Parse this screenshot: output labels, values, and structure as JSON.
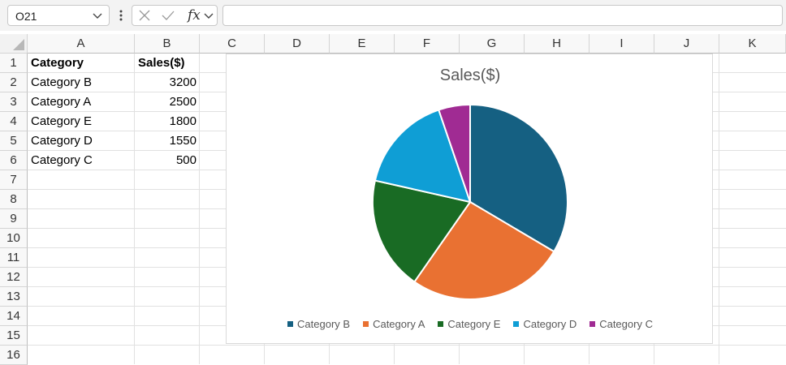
{
  "formula_bar": {
    "name_box": "O21",
    "fx_label": "fx",
    "formula": "",
    "icons": [
      "chevron-down-icon",
      "more-dots-icon",
      "cancel-x-icon",
      "confirm-check-icon",
      "chevron-down-icon"
    ]
  },
  "grid": {
    "columns": [
      "A",
      "B",
      "C",
      "D",
      "E",
      "F",
      "G",
      "H",
      "I",
      "J",
      "K"
    ],
    "rows": [
      "1",
      "2",
      "3",
      "4",
      "5",
      "6",
      "7",
      "8",
      "9",
      "10",
      "11",
      "12",
      "13",
      "14",
      "15",
      "16"
    ],
    "cells": {
      "A1": "Category",
      "B1": "Sales($)",
      "A2": "Category B",
      "B2": "3200",
      "A3": "Category A",
      "B3": "2500",
      "A4": "Category E",
      "B4": "1800",
      "A5": "Category D",
      "B5": "1550",
      "A6": "Category C",
      "B6": "500"
    }
  },
  "chart_data": {
    "type": "pie",
    "title": "Sales($)",
    "categories": [
      "Category B",
      "Category A",
      "Category E",
      "Category D",
      "Category C"
    ],
    "values": [
      3200,
      2500,
      1800,
      1550,
      500
    ],
    "colors": [
      "#156082",
      "#e97132",
      "#196b24",
      "#0f9ed5",
      "#a02b93"
    ],
    "legend_position": "bottom"
  }
}
